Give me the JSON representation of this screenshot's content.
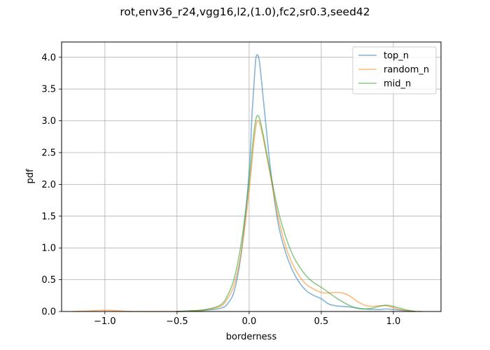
{
  "chart_data": {
    "type": "line",
    "title": "rot,env36_r24,vgg16,l2,(1.0),fc2,sr0.3,seed42",
    "xlabel": "borderness",
    "ylabel": "pdf",
    "xlim": [
      -1.3,
      1.33
    ],
    "ylim": [
      0,
      4.24
    ],
    "grid": true,
    "legend_position": "top-right",
    "x_ticks": [
      -1.0,
      -0.5,
      0.0,
      0.5,
      1.0
    ],
    "x_tick_labels": [
      "−1.0",
      "−0.5",
      "0.0",
      "0.5",
      "1.0"
    ],
    "y_ticks": [
      0.0,
      0.5,
      1.0,
      1.5,
      2.0,
      2.5,
      3.0,
      3.5,
      4.0
    ],
    "y_tick_labels": [
      "0.0",
      "0.5",
      "1.0",
      "1.5",
      "2.0",
      "2.5",
      "3.0",
      "3.5",
      "4.0"
    ],
    "series": [
      {
        "name": "top_n",
        "color": "#1f77b4",
        "points": [
          [
            -0.5,
            0.0
          ],
          [
            -0.4,
            0.01
          ],
          [
            -0.3,
            0.02
          ],
          [
            -0.2,
            0.05
          ],
          [
            -0.15,
            0.12
          ],
          [
            -0.1,
            0.35
          ],
          [
            -0.05,
            1.0
          ],
          [
            0.0,
            2.2
          ],
          [
            0.02,
            3.1
          ],
          [
            0.04,
            3.8
          ],
          [
            0.05,
            4.02
          ],
          [
            0.07,
            3.95
          ],
          [
            0.1,
            3.3
          ],
          [
            0.15,
            2.2
          ],
          [
            0.2,
            1.4
          ],
          [
            0.25,
            0.95
          ],
          [
            0.3,
            0.65
          ],
          [
            0.35,
            0.45
          ],
          [
            0.4,
            0.32
          ],
          [
            0.45,
            0.25
          ],
          [
            0.5,
            0.2
          ],
          [
            0.55,
            0.12
          ],
          [
            0.6,
            0.09
          ],
          [
            0.7,
            0.07
          ],
          [
            0.8,
            0.04
          ],
          [
            0.9,
            0.03
          ],
          [
            0.95,
            0.04
          ],
          [
            1.0,
            0.03
          ],
          [
            1.05,
            0.02
          ],
          [
            1.1,
            0.01
          ],
          [
            1.15,
            0.0
          ]
        ]
      },
      {
        "name": "random_n",
        "color": "#ff7f0e",
        "points": [
          [
            -1.22,
            0.0
          ],
          [
            -1.1,
            0.01
          ],
          [
            -1.0,
            0.02
          ],
          [
            -0.9,
            0.01
          ],
          [
            -0.8,
            0.0
          ],
          [
            -0.5,
            0.0
          ],
          [
            -0.4,
            0.01
          ],
          [
            -0.3,
            0.03
          ],
          [
            -0.2,
            0.08
          ],
          [
            -0.15,
            0.2
          ],
          [
            -0.1,
            0.45
          ],
          [
            -0.05,
            1.0
          ],
          [
            0.0,
            1.9
          ],
          [
            0.03,
            2.6
          ],
          [
            0.05,
            2.95
          ],
          [
            0.07,
            2.98
          ],
          [
            0.1,
            2.7
          ],
          [
            0.15,
            2.1
          ],
          [
            0.2,
            1.5
          ],
          [
            0.25,
            1.05
          ],
          [
            0.3,
            0.75
          ],
          [
            0.35,
            0.55
          ],
          [
            0.4,
            0.42
          ],
          [
            0.45,
            0.35
          ],
          [
            0.5,
            0.3
          ],
          [
            0.55,
            0.29
          ],
          [
            0.6,
            0.3
          ],
          [
            0.65,
            0.29
          ],
          [
            0.7,
            0.24
          ],
          [
            0.75,
            0.16
          ],
          [
            0.8,
            0.1
          ],
          [
            0.85,
            0.08
          ],
          [
            0.9,
            0.09
          ],
          [
            0.95,
            0.09
          ],
          [
            1.0,
            0.06
          ],
          [
            1.05,
            0.03
          ],
          [
            1.1,
            0.01
          ],
          [
            1.2,
            0.0
          ]
        ]
      },
      {
        "name": "mid_n",
        "color": "#2ca02c",
        "points": [
          [
            -0.5,
            0.0
          ],
          [
            -0.4,
            0.01
          ],
          [
            -0.3,
            0.03
          ],
          [
            -0.2,
            0.1
          ],
          [
            -0.15,
            0.25
          ],
          [
            -0.1,
            0.55
          ],
          [
            -0.05,
            1.15
          ],
          [
            0.0,
            2.05
          ],
          [
            0.03,
            2.75
          ],
          [
            0.05,
            3.05
          ],
          [
            0.07,
            3.05
          ],
          [
            0.1,
            2.75
          ],
          [
            0.15,
            2.15
          ],
          [
            0.2,
            1.6
          ],
          [
            0.25,
            1.2
          ],
          [
            0.3,
            0.9
          ],
          [
            0.35,
            0.7
          ],
          [
            0.4,
            0.55
          ],
          [
            0.45,
            0.45
          ],
          [
            0.5,
            0.38
          ],
          [
            0.55,
            0.3
          ],
          [
            0.6,
            0.22
          ],
          [
            0.65,
            0.15
          ],
          [
            0.7,
            0.09
          ],
          [
            0.75,
            0.05
          ],
          [
            0.8,
            0.04
          ],
          [
            0.85,
            0.05
          ],
          [
            0.9,
            0.08
          ],
          [
            0.95,
            0.1
          ],
          [
            1.0,
            0.08
          ],
          [
            1.05,
            0.05
          ],
          [
            1.1,
            0.02
          ],
          [
            1.15,
            0.0
          ]
        ]
      }
    ]
  }
}
